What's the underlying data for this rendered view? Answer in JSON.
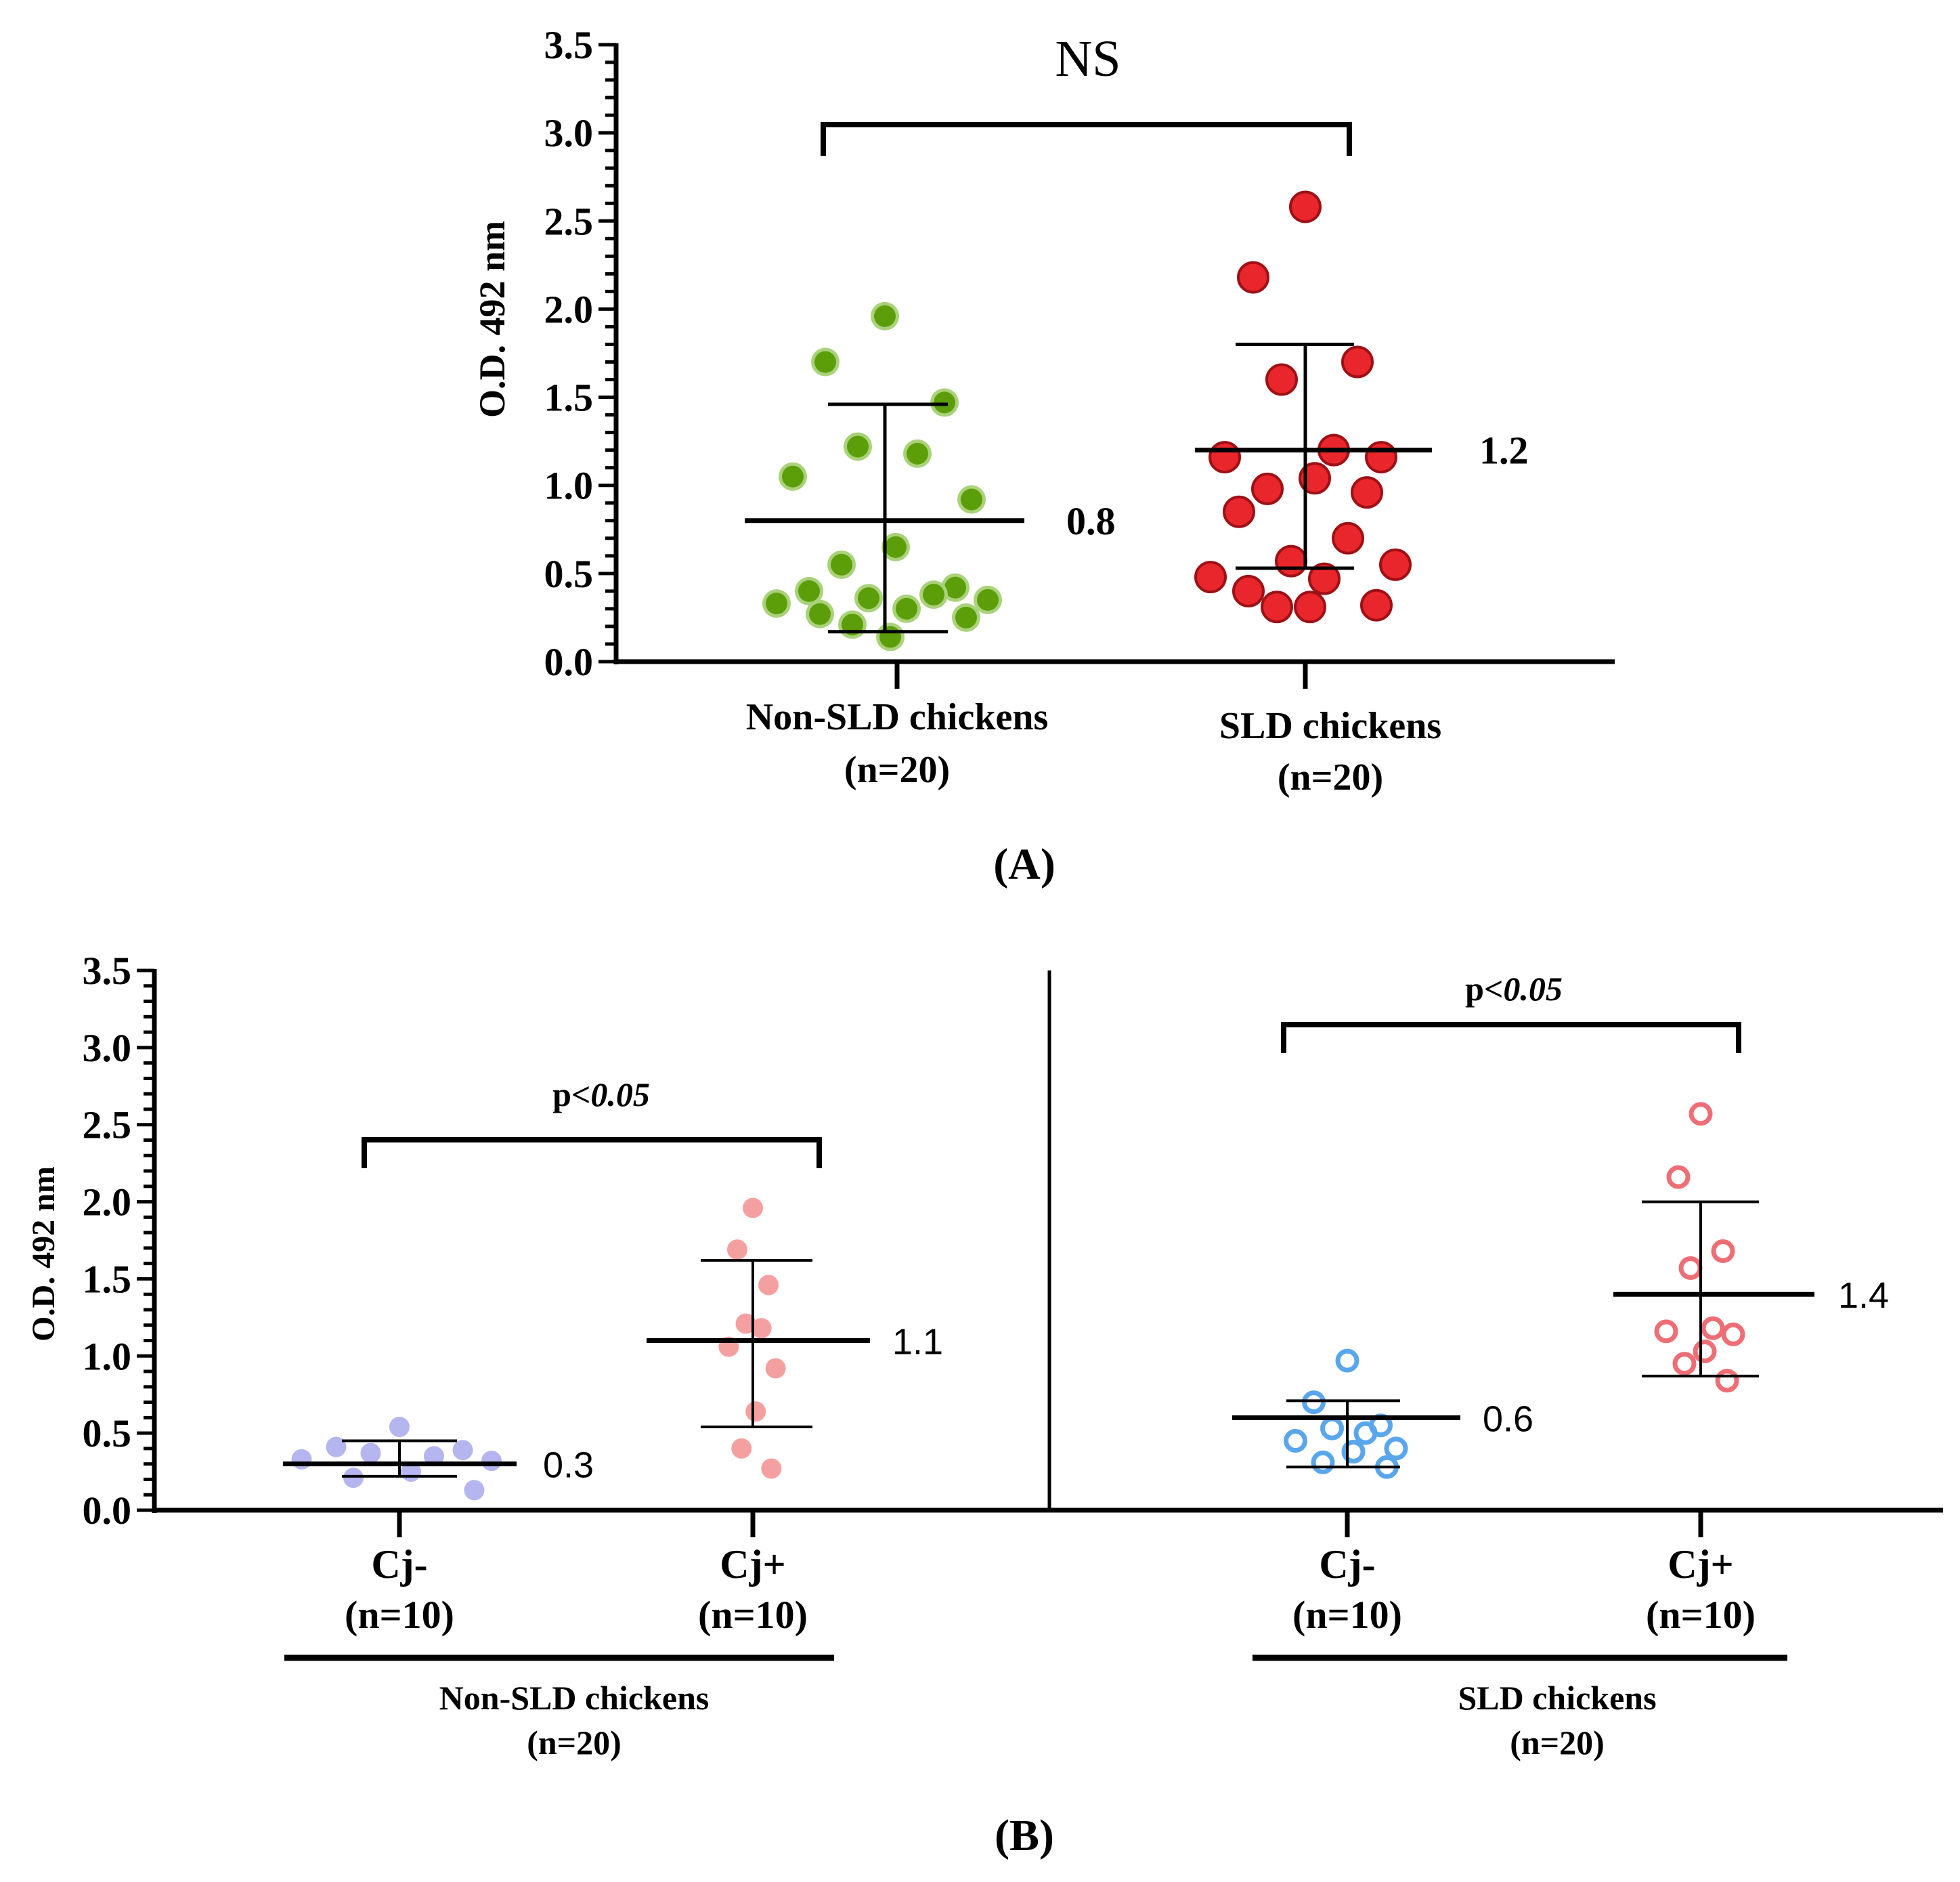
{
  "chart_data": [
    {
      "type": "scatter",
      "panel_label": "(A)",
      "ylabel": "O.D. 492 nm",
      "ylim": [
        0,
        3.5
      ],
      "yticks": [
        "0.0",
        "0.5",
        "1.0",
        "1.5",
        "2.0",
        "2.5",
        "3.0",
        "3.5"
      ],
      "significance": "NS",
      "groups": [
        {
          "name": "Non-SLD chickens",
          "n_label": "(n=20)",
          "color": "#5c9e0a",
          "edge_color": "#a9d27a",
          "marker": "filled-small",
          "mean": 0.8,
          "mean_label": "0.8",
          "sd_low": 0.17,
          "sd_high": 1.46,
          "points": [
            1.96,
            1.7,
            1.47,
            1.22,
            1.18,
            1.05,
            0.92,
            0.65,
            0.55,
            0.42,
            0.4,
            0.38,
            0.36,
            0.35,
            0.33,
            0.3,
            0.27,
            0.25,
            0.21,
            0.14
          ]
        },
        {
          "name": "SLD chickens",
          "n_label": "(n=20)",
          "color": "#e8262b",
          "edge_color": "#9e1015",
          "marker": "filled-large",
          "mean": 1.2,
          "mean_label": "1.2",
          "sd_low": 0.53,
          "sd_high": 1.8,
          "points": [
            2.58,
            2.18,
            1.7,
            1.6,
            1.2,
            1.16,
            1.16,
            1.04,
            0.98,
            0.96,
            0.85,
            0.7,
            0.57,
            0.55,
            0.48,
            0.47,
            0.4,
            0.32,
            0.31,
            0.31
          ]
        }
      ]
    },
    {
      "type": "scatter",
      "panel_label": "(B)",
      "ylabel": "O.D. 492 nm",
      "ylim": [
        0,
        3.5
      ],
      "yticks": [
        "0.0",
        "0.5",
        "1.0",
        "1.5",
        "2.0",
        "2.5",
        "3.0",
        "3.5"
      ],
      "comparisons": [
        {
          "significance_prefix": "p<",
          "significance_value": "0.05",
          "between": [
            "Cj-",
            "Cj+"
          ],
          "block": "Non-SLD chickens"
        },
        {
          "significance_prefix": "p<",
          "significance_value": "0.05",
          "between": [
            "Cj-",
            "Cj+"
          ],
          "block": "SLD chickens"
        }
      ],
      "blocks": [
        {
          "name": "Non-SLD chickens",
          "n_label": "(n=20)"
        },
        {
          "name": "SLD chickens",
          "n_label": "(n=20)"
        }
      ],
      "groups": [
        {
          "name": "Cj-",
          "n_label": "(n=10)",
          "block": 0,
          "color": "#b5b5f0",
          "marker": "filled",
          "mean": 0.3,
          "mean_label": "0.3",
          "sd_low": 0.22,
          "sd_high": 0.45,
          "points": [
            0.54,
            0.41,
            0.39,
            0.37,
            0.35,
            0.33,
            0.32,
            0.25,
            0.21,
            0.13
          ]
        },
        {
          "name": "Cj+",
          "n_label": "(n=10)",
          "block": 0,
          "color": "#f4a0a0",
          "marker": "filled",
          "mean": 1.1,
          "mean_label": "1.1",
          "sd_low": 0.54,
          "sd_high": 1.62,
          "points": [
            1.96,
            1.69,
            1.46,
            1.21,
            1.18,
            1.06,
            0.92,
            0.64,
            0.4,
            0.27
          ]
        },
        {
          "name": "Cj-",
          "n_label": "(n=10)",
          "block": 1,
          "color": "#5aa6ec",
          "marker": "open",
          "mean": 0.6,
          "mean_label": "0.6",
          "sd_low": 0.28,
          "sd_high": 0.71,
          "points": [
            0.97,
            0.7,
            0.55,
            0.53,
            0.5,
            0.45,
            0.4,
            0.38,
            0.31,
            0.28
          ]
        },
        {
          "name": "Cj+",
          "n_label": "(n=10)",
          "block": 1,
          "color": "#ee6e76",
          "marker": "open",
          "mean": 1.4,
          "mean_label": "1.4",
          "sd_low": 0.87,
          "sd_high": 2.0,
          "points": [
            2.57,
            2.16,
            1.68,
            1.57,
            1.18,
            1.16,
            1.14,
            1.03,
            0.95,
            0.84
          ]
        }
      ]
    }
  ]
}
